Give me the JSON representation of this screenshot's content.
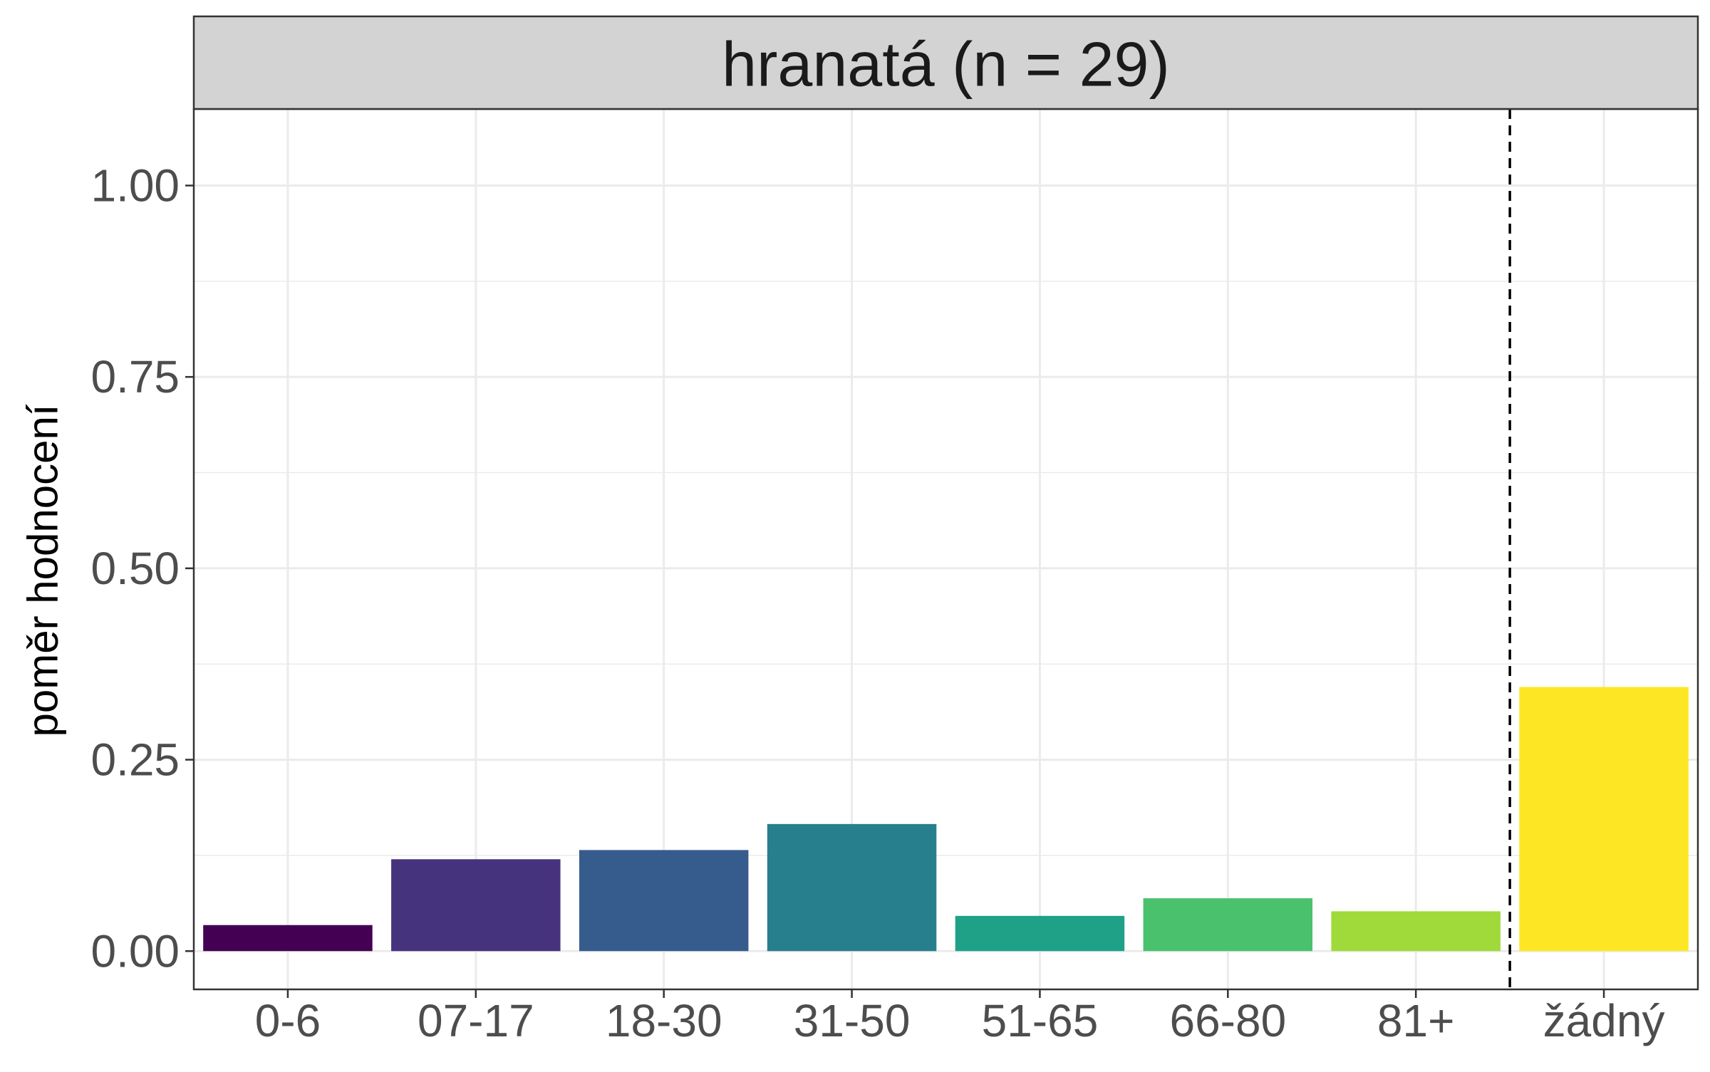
{
  "chart_data": {
    "type": "bar",
    "title": "hranatá (n = 29)",
    "xlabel": "",
    "ylabel": "poměr hodnocení",
    "categories": [
      "0-6",
      "07-17",
      "18-30",
      "31-50",
      "51-65",
      "66-80",
      "81+",
      "žádný"
    ],
    "values": [
      0.034,
      0.12,
      0.132,
      0.166,
      0.046,
      0.069,
      0.052,
      0.345
    ],
    "colors": [
      "#440154",
      "#46337E",
      "#365C8D",
      "#277F8E",
      "#1FA187",
      "#4AC16D",
      "#9FDA3A",
      "#FDE725"
    ],
    "ylim": [
      -0.05,
      1.1
    ],
    "yticks": [
      0.0,
      0.25,
      0.5,
      0.75,
      1.0
    ],
    "ytick_labels": [
      "0.00",
      "0.25",
      "0.50",
      "0.75",
      "1.00"
    ],
    "divider_after_category": "81+",
    "divider_style": "dashed",
    "grid": true,
    "legend": "none"
  }
}
